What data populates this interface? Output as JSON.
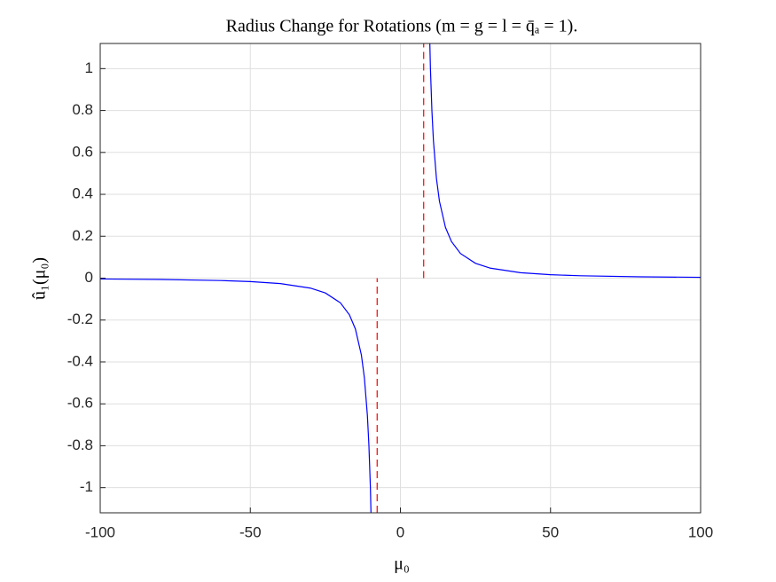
{
  "chart_data": {
    "type": "line",
    "title": "Radius Change for Rotations (m = g = l = q̄ₐ = 1).",
    "xlabel": "μ₀",
    "ylabel": "û₁(μ₀)",
    "x": [
      -100,
      -80,
      -60,
      -50,
      -40,
      -30,
      -25,
      -20,
      -17,
      -15,
      -13,
      -12,
      -11,
      -10.5,
      -10,
      -9.6,
      null,
      9.6,
      10,
      10.5,
      11,
      12,
      13,
      15,
      17,
      20,
      25,
      30,
      40,
      50,
      60,
      80,
      100
    ],
    "series": [
      {
        "color": "#0000ff",
        "values": [
          -0.004,
          -0.0063,
          -0.0113,
          -0.0164,
          -0.026,
          -0.0476,
          -0.0708,
          -0.1176,
          -0.1747,
          -0.2424,
          -0.367,
          -0.4762,
          -0.6557,
          -0.796,
          -1.0,
          -1.2438,
          null,
          1.2438,
          1.0,
          0.796,
          0.6557,
          0.4762,
          0.367,
          0.2424,
          0.1747,
          0.1176,
          0.0708,
          0.0476,
          0.026,
          0.0164,
          0.0113,
          0.0063,
          0.004
        ]
      }
    ],
    "asymptotes": [
      {
        "x": -7.75,
        "y": [
          -1.12,
          0
        ]
      },
      {
        "x": 7.75,
        "y": [
          0,
          1.12
        ]
      }
    ],
    "asymptote_color": "#ff0000",
    "xlim": [
      -100,
      100
    ],
    "xticks": [
      -100,
      -50,
      0,
      50,
      100
    ],
    "ylim": [
      -1.12,
      1.12
    ],
    "yticks": [
      -1,
      -0.8,
      -0.6,
      -0.4,
      -0.2,
      0,
      0.2,
      0.4,
      0.6,
      0.8,
      1
    ],
    "grid": true
  }
}
